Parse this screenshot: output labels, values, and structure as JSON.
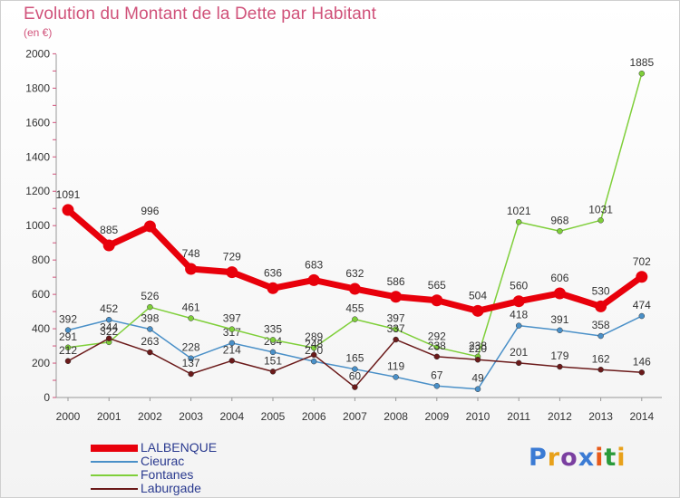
{
  "title": "Evolution du Montant de la Dette par Habitant",
  "subtitle": "(en €)",
  "logo": {
    "text": "Proxiti",
    "colors": [
      "#3b7bd4",
      "#e8a11a",
      "#7a3fa0",
      "#3b7bd4",
      "#e85a1a",
      "#2a9a3a",
      "#e8a11a"
    ]
  },
  "chart_data": {
    "type": "line",
    "title": "Evolution du Montant de la Dette par Habitant",
    "subtitle": "(en €)",
    "x": [
      "2000",
      "2001",
      "2002",
      "2003",
      "2004",
      "2005",
      "2006",
      "2007",
      "2008",
      "2009",
      "2010",
      "2011",
      "2012",
      "2013",
      "2014"
    ],
    "y_ticks": [
      "0",
      "200",
      "400",
      "600",
      "800",
      "1000",
      "1200",
      "1400",
      "1600",
      "1800",
      "2000"
    ],
    "ylim": [
      0,
      2000
    ],
    "grid": false,
    "legend_position": "bottom-left",
    "series": [
      {
        "name": "LALBENQUE",
        "color": "#e8000b",
        "values": [
          1091,
          885,
          996,
          748,
          729,
          636,
          683,
          632,
          586,
          565,
          504,
          560,
          606,
          530,
          702
        ]
      },
      {
        "name": "Cieurac",
        "color": "#4a90c8",
        "values": [
          392,
          452,
          398,
          228,
          317,
          264,
          210,
          165,
          119,
          67,
          49,
          418,
          391,
          358,
          474
        ]
      },
      {
        "name": "Fontanes",
        "color": "#7fcf3a",
        "values": [
          291,
          322,
          526,
          461,
          397,
          335,
          289,
          455,
          397,
          292,
          238,
          1021,
          968,
          1031,
          1885
        ]
      },
      {
        "name": "Laburgade",
        "color": "#6b1a1a",
        "values": [
          212,
          344,
          263,
          137,
          214,
          151,
          248,
          60,
          337,
          238,
          220,
          201,
          179,
          162,
          146
        ]
      }
    ]
  }
}
